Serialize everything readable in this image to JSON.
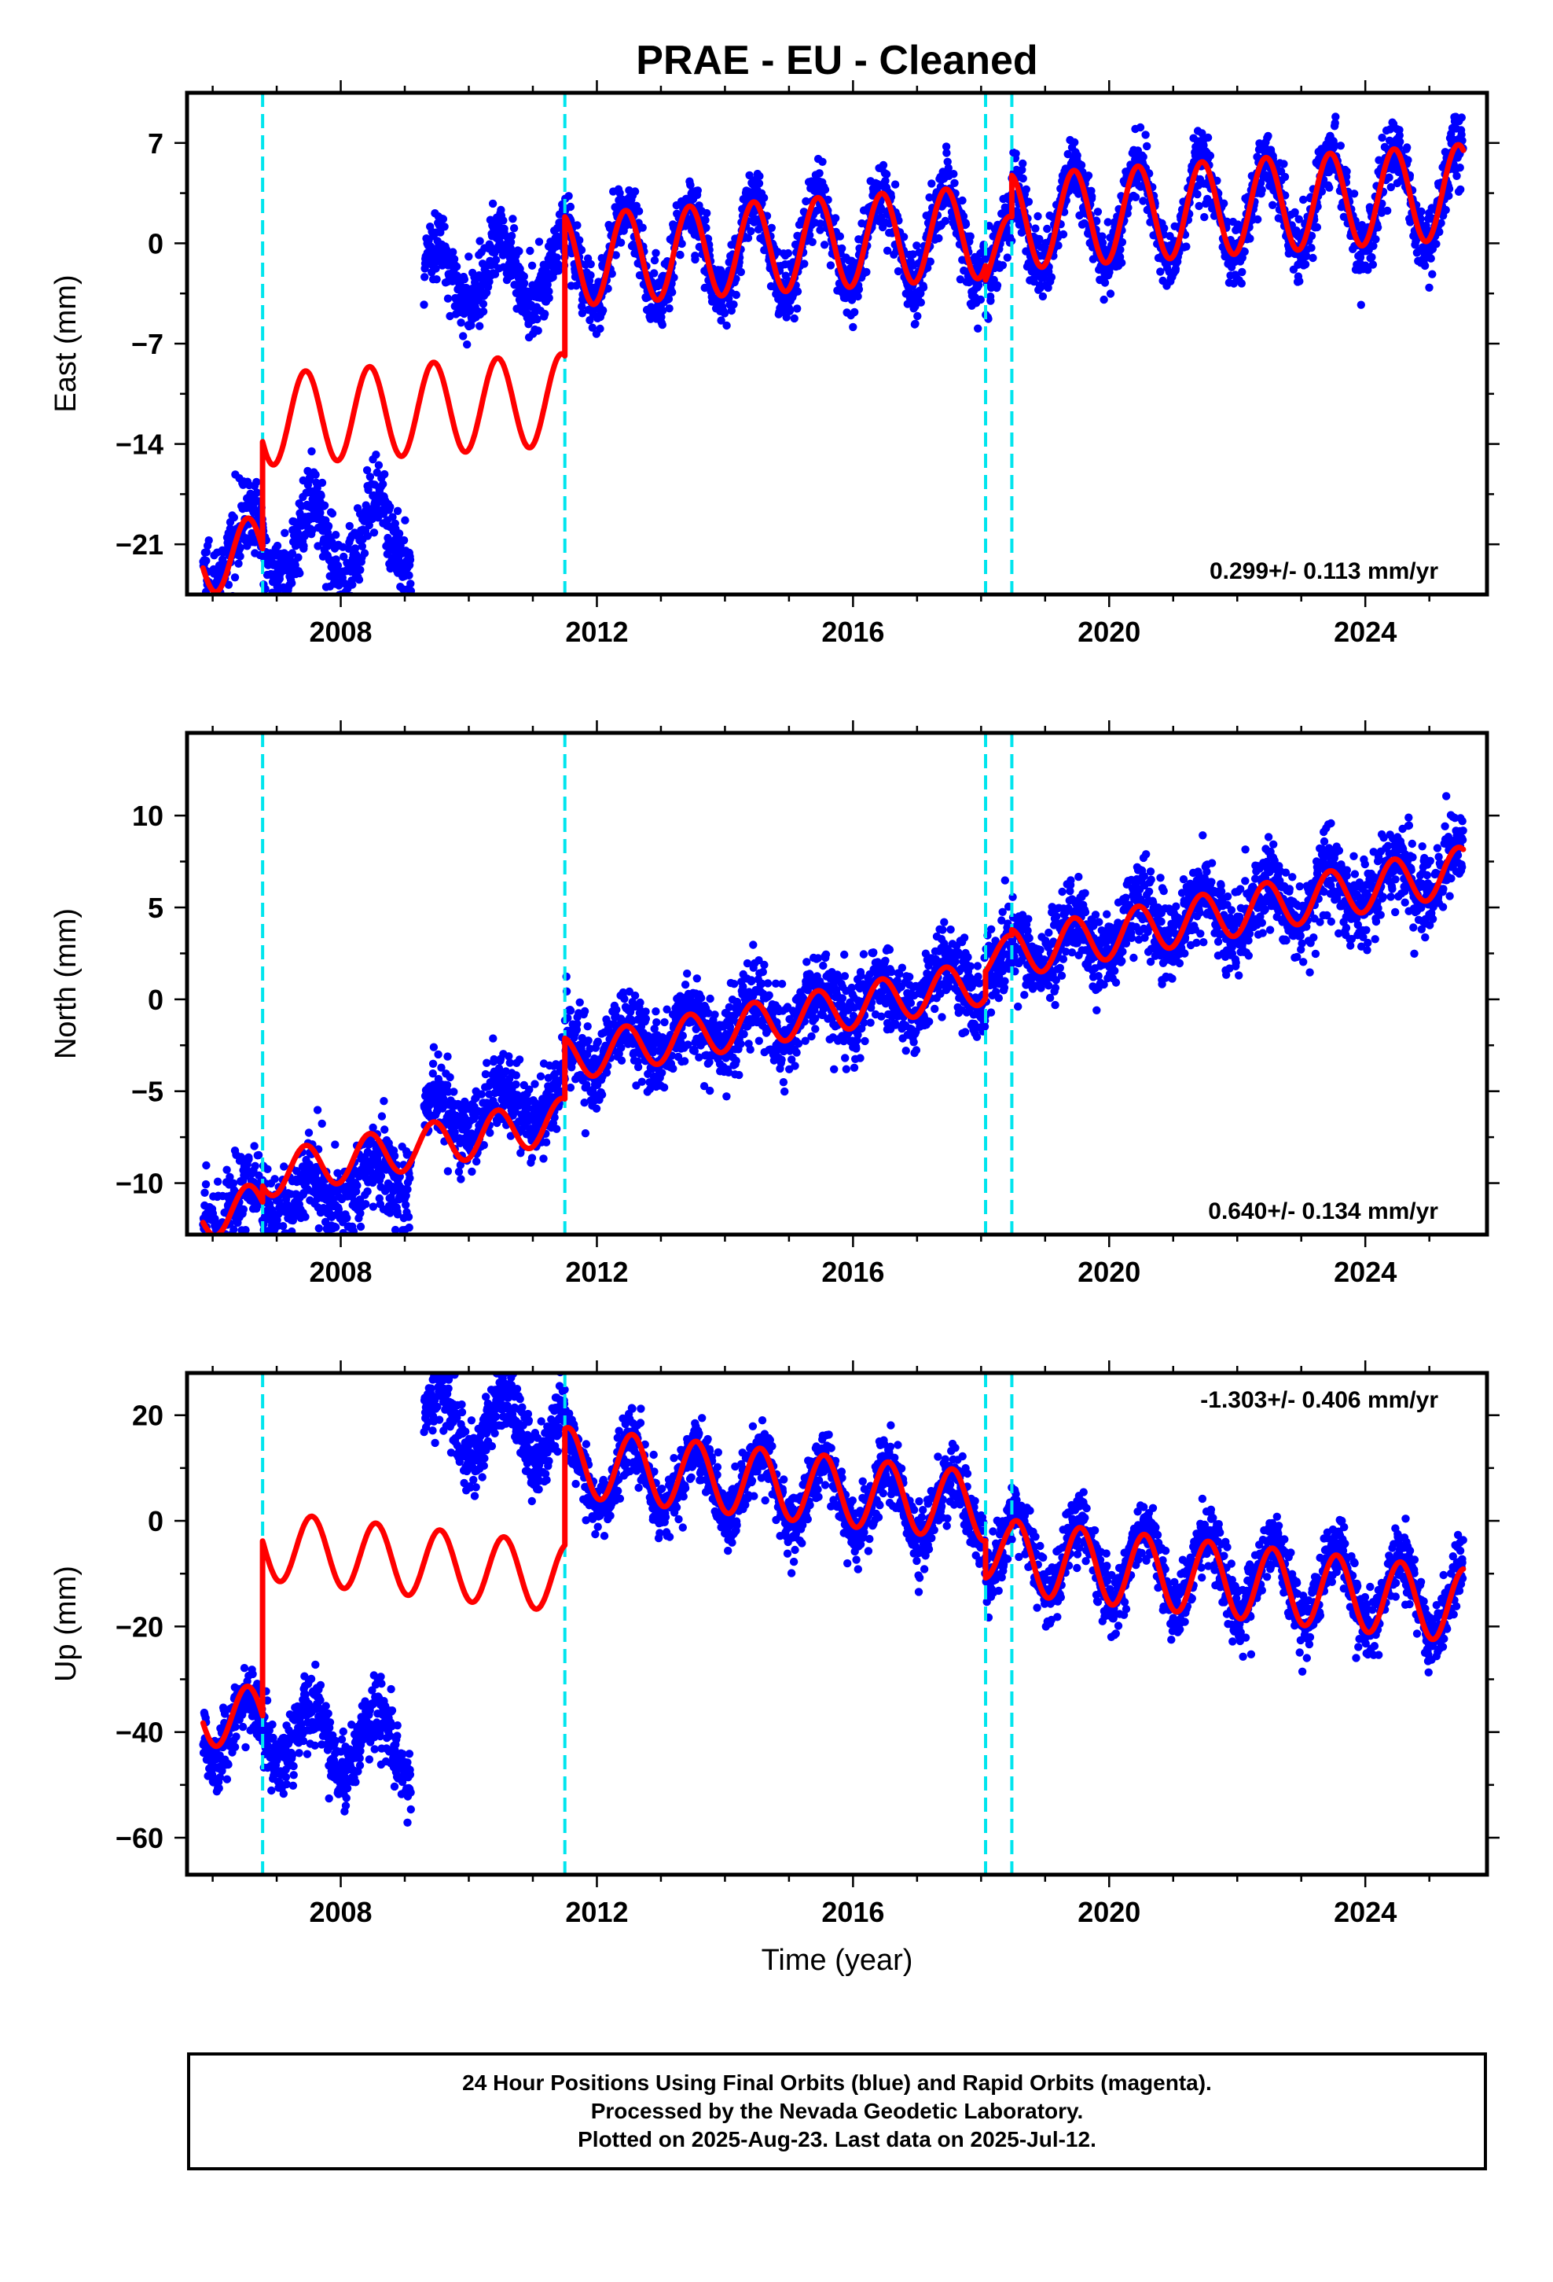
{
  "title": "PRAE  - EU - Cleaned",
  "colors": {
    "observations": "#0000ff",
    "model_fit": "#ff0000",
    "offset_lines": "#00e5ee",
    "frame": "#000000"
  },
  "xlabel": "Time (year)",
  "footer": {
    "lines": [
      "24 Hour Positions Using Final Orbits (blue) and Rapid Orbits (magenta).",
      "Processed by the Nevada Geodetic Laboratory.",
      "Plotted on 2025-Aug-23. Last data on 2025-Jul-12."
    ]
  },
  "chart_data": [
    {
      "type": "scatter",
      "component": "east",
      "ylabel": "East (mm)",
      "rate_label": "0.299+/- 0.113 mm/yr",
      "rate_label_position": "bottom-right",
      "xlim": [
        2005.6,
        2025.9
      ],
      "ylim": [
        -24.5,
        10.5
      ],
      "x_ticks": [
        2008,
        2012,
        2016,
        2020,
        2024
      ],
      "y_ticks": [
        7,
        0,
        -7,
        -14,
        -21
      ],
      "y_tick_labels": [
        "7",
        "0",
        "−7",
        "−14",
        "−21"
      ],
      "offset_epochs": [
        2006.78,
        2011.5,
        2018.07,
        2018.48
      ],
      "observation_segments": [
        {
          "x_start": 2005.85,
          "x_end": 2009.1,
          "slope": 0.299,
          "level": -18.5,
          "amplitude": 2.5,
          "phase_peak": 0.55,
          "noise": 1.3,
          "count": 620
        },
        {
          "x_start": 2009.3,
          "x_end": 2011.5,
          "slope": 0.299,
          "level": -0.5,
          "amplitude": 2.3,
          "phase_peak": 0.5,
          "noise": 1.2,
          "count": 420
        },
        {
          "x_start": 2011.5,
          "x_end": 2018.07,
          "slope": 0.299,
          "level": 0.0,
          "amplitude": 3.2,
          "phase_peak": 0.45,
          "noise": 1.2,
          "count": 1250
        },
        {
          "x_start": 2018.07,
          "x_end": 2018.48,
          "slope": 0.299,
          "level": -1.8,
          "amplitude": 2.5,
          "phase_peak": 0.45,
          "noise": 1.3,
          "count": 80
        },
        {
          "x_start": 2018.48,
          "x_end": 2025.53,
          "slope": 0.299,
          "level": 0.5,
          "amplitude": 3.4,
          "phase_peak": 0.45,
          "noise": 1.2,
          "count": 1350
        }
      ],
      "model_segments": [
        {
          "x_start": 2005.85,
          "x_end": 2006.78,
          "slope": 0.299,
          "level": -19.0,
          "amplitude": 2.5,
          "phase_peak": 0.55
        },
        {
          "x_start": 2006.78,
          "x_end": 2011.5,
          "slope": 0.299,
          "level": -9.7,
          "amplitude": 3.2,
          "phase_peak": 0.45
        },
        {
          "x_start": 2011.5,
          "x_end": 2018.07,
          "slope": 0.299,
          "level": 0.0,
          "amplitude": 3.2,
          "phase_peak": 0.45
        },
        {
          "x_start": 2018.07,
          "x_end": 2018.48,
          "slope": 0.299,
          "level": -1.5,
          "amplitude": 2.5,
          "phase_peak": 0.45
        },
        {
          "x_start": 2018.48,
          "x_end": 2025.53,
          "slope": 0.299,
          "level": 0.6,
          "amplitude": 3.3,
          "phase_peak": 0.45
        }
      ]
    },
    {
      "type": "scatter",
      "component": "north",
      "ylabel": "North (mm)",
      "rate_label": "0.640+/- 0.134 mm/yr",
      "rate_label_position": "bottom-right",
      "xlim": [
        2005.6,
        2025.9
      ],
      "ylim": [
        -12.8,
        14.5
      ],
      "x_ticks": [
        2008,
        2012,
        2016,
        2020,
        2024
      ],
      "y_ticks": [
        10,
        5,
        0,
        -5,
        -10
      ],
      "y_tick_labels": [
        "10",
        "5",
        "0",
        "−5",
        "−10"
      ],
      "offset_epochs": [
        2006.78,
        2011.5,
        2018.07,
        2018.48
      ],
      "observation_segments": [
        {
          "x_start": 2005.85,
          "x_end": 2009.1,
          "slope": 0.64,
          "level": -5.5,
          "amplitude": 1.2,
          "phase_peak": 0.55,
          "noise": 1.3,
          "count": 620
        },
        {
          "x_start": 2009.3,
          "x_end": 2011.5,
          "slope": 0.64,
          "level": -2.7,
          "amplitude": 1.2,
          "phase_peak": 0.5,
          "noise": 1.1,
          "count": 420
        },
        {
          "x_start": 2011.5,
          "x_end": 2018.07,
          "slope": 0.64,
          "level": -0.5,
          "amplitude": 1.2,
          "phase_peak": 0.45,
          "noise": 1.1,
          "count": 1250
        },
        {
          "x_start": 2018.07,
          "x_end": 2018.48,
          "slope": 0.64,
          "level": 0.2,
          "amplitude": 1.0,
          "phase_peak": 0.45,
          "noise": 1.2,
          "count": 80
        },
        {
          "x_start": 2018.48,
          "x_end": 2025.53,
          "slope": 0.64,
          "level": 0.6,
          "amplitude": 1.3,
          "phase_peak": 0.45,
          "noise": 1.1,
          "count": 1350
        }
      ],
      "model_segments": [
        {
          "x_start": 2005.85,
          "x_end": 2006.78,
          "slope": 0.64,
          "level": -5.6,
          "amplitude": 1.2,
          "phase_peak": 0.55
        },
        {
          "x_start": 2006.78,
          "x_end": 2011.5,
          "slope": 0.64,
          "level": -4.0,
          "amplitude": 1.2,
          "phase_peak": 0.45
        },
        {
          "x_start": 2011.5,
          "x_end": 2018.07,
          "slope": 0.64,
          "level": -0.7,
          "amplitude": 1.2,
          "phase_peak": 0.45
        },
        {
          "x_start": 2018.07,
          "x_end": 2018.48,
          "slope": 0.64,
          "level": 0.6,
          "amplitude": 1.0,
          "phase_peak": 0.45
        },
        {
          "x_start": 2018.48,
          "x_end": 2025.53,
          "slope": 0.64,
          "level": 0.6,
          "amplitude": 1.3,
          "phase_peak": 0.45
        }
      ]
    },
    {
      "type": "scatter",
      "component": "up",
      "ylabel": "Up (mm)",
      "rate_label": "-1.303+/- 0.406 mm/yr",
      "rate_label_position": "top-right",
      "xlim": [
        2005.6,
        2025.9
      ],
      "ylim": [
        -67,
        28
      ],
      "x_ticks": [
        2008,
        2012,
        2016,
        2020,
        2024
      ],
      "y_ticks": [
        20,
        0,
        -20,
        -40,
        -60
      ],
      "y_tick_labels": [
        "20",
        "0",
        "−20",
        "−40",
        "−60"
      ],
      "offset_epochs": [
        2006.78,
        2011.5,
        2018.07,
        2018.48
      ],
      "observation_segments": [
        {
          "x_start": 2005.85,
          "x_end": 2009.1,
          "slope": -1.303,
          "level": -51.0,
          "amplitude": 6.0,
          "phase_peak": 0.55,
          "noise": 3.3,
          "count": 620
        },
        {
          "x_start": 2009.3,
          "x_end": 2011.5,
          "slope": -1.303,
          "level": 11.0,
          "amplitude": 6.0,
          "phase_peak": 0.55,
          "noise": 3.3,
          "count": 420
        },
        {
          "x_start": 2011.5,
          "x_end": 2018.07,
          "slope": -1.303,
          "level": 5.0,
          "amplitude": 6.5,
          "phase_peak": 0.55,
          "noise": 3.0,
          "count": 1250
        },
        {
          "x_start": 2018.07,
          "x_end": 2018.48,
          "slope": -1.303,
          "level": -2.0,
          "amplitude": 6.0,
          "phase_peak": 0.55,
          "noise": 3.5,
          "count": 80
        },
        {
          "x_start": 2018.48,
          "x_end": 2025.53,
          "slope": -1.303,
          "level": -2.0,
          "amplitude": 7.0,
          "phase_peak": 0.55,
          "noise": 3.0,
          "count": 1350
        }
      ],
      "model_segments": [
        {
          "x_start": 2005.85,
          "x_end": 2006.78,
          "slope": -1.303,
          "level": -49.0,
          "amplitude": 6.0,
          "phase_peak": 0.55
        },
        {
          "x_start": 2006.78,
          "x_end": 2011.5,
          "slope": -1.303,
          "level": -16.0,
          "amplitude": 6.5,
          "phase_peak": 0.55
        },
        {
          "x_start": 2011.5,
          "x_end": 2018.07,
          "slope": -1.303,
          "level": 6.0,
          "amplitude": 6.5,
          "phase_peak": 0.55
        },
        {
          "x_start": 2018.07,
          "x_end": 2018.48,
          "slope": -1.303,
          "level": -2.0,
          "amplitude": 5.5,
          "phase_peak": 0.55
        },
        {
          "x_start": 2018.48,
          "x_end": 2025.53,
          "slope": -1.303,
          "level": -3.0,
          "amplitude": 7.0,
          "phase_peak": 0.55
        }
      ]
    }
  ]
}
